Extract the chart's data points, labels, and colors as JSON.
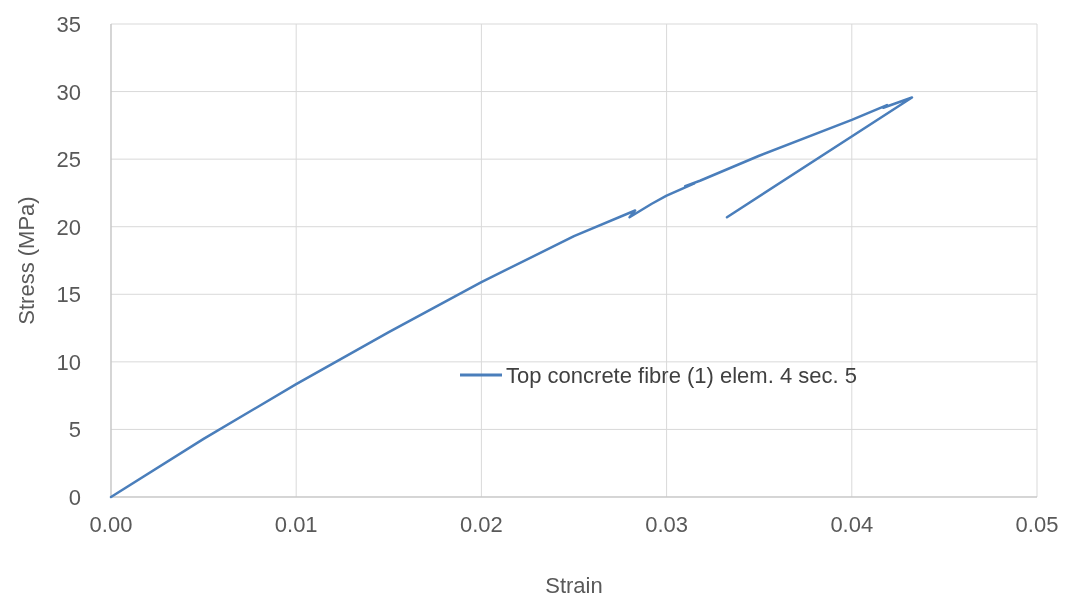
{
  "chart_data": {
    "type": "line",
    "xlabel": "Strain",
    "ylabel": "Stress (MPa)",
    "xlim": [
      0,
      0.05
    ],
    "ylim": [
      0,
      35
    ],
    "xticks": [
      {
        "value": 0,
        "label": "0.00"
      },
      {
        "value": 0.01,
        "label": "0.01"
      },
      {
        "value": 0.02,
        "label": "0.02"
      },
      {
        "value": 0.03,
        "label": "0.03"
      },
      {
        "value": 0.04,
        "label": "0.04"
      },
      {
        "value": 0.05,
        "label": "0.05"
      }
    ],
    "yticks": [
      0,
      5,
      10,
      15,
      20,
      25,
      30,
      35
    ],
    "grid": true,
    "legend": "right",
    "marker": "none",
    "line_style": "solid",
    "series": [
      {
        "name": "Top concrete fibre (1) elem. 4 sec. 5",
        "color": "#4a7ebb",
        "x": [
          0,
          0.005,
          0.01,
          0.015,
          0.02,
          0.025,
          0.0283,
          0.028,
          0.0292,
          0.03,
          0.0315,
          0.031,
          0.0318,
          0.035,
          0.04,
          0.0419,
          0.0417,
          0.04325,
          0.03326
        ],
        "values": [
          0,
          4.3,
          8.35,
          12.2,
          15.9,
          19.3,
          21.2,
          20.7,
          21.7,
          22.3,
          23.2,
          23.0,
          23.4,
          25.25,
          27.9,
          29.0,
          28.8,
          29.56,
          20.7
        ]
      }
    ]
  }
}
